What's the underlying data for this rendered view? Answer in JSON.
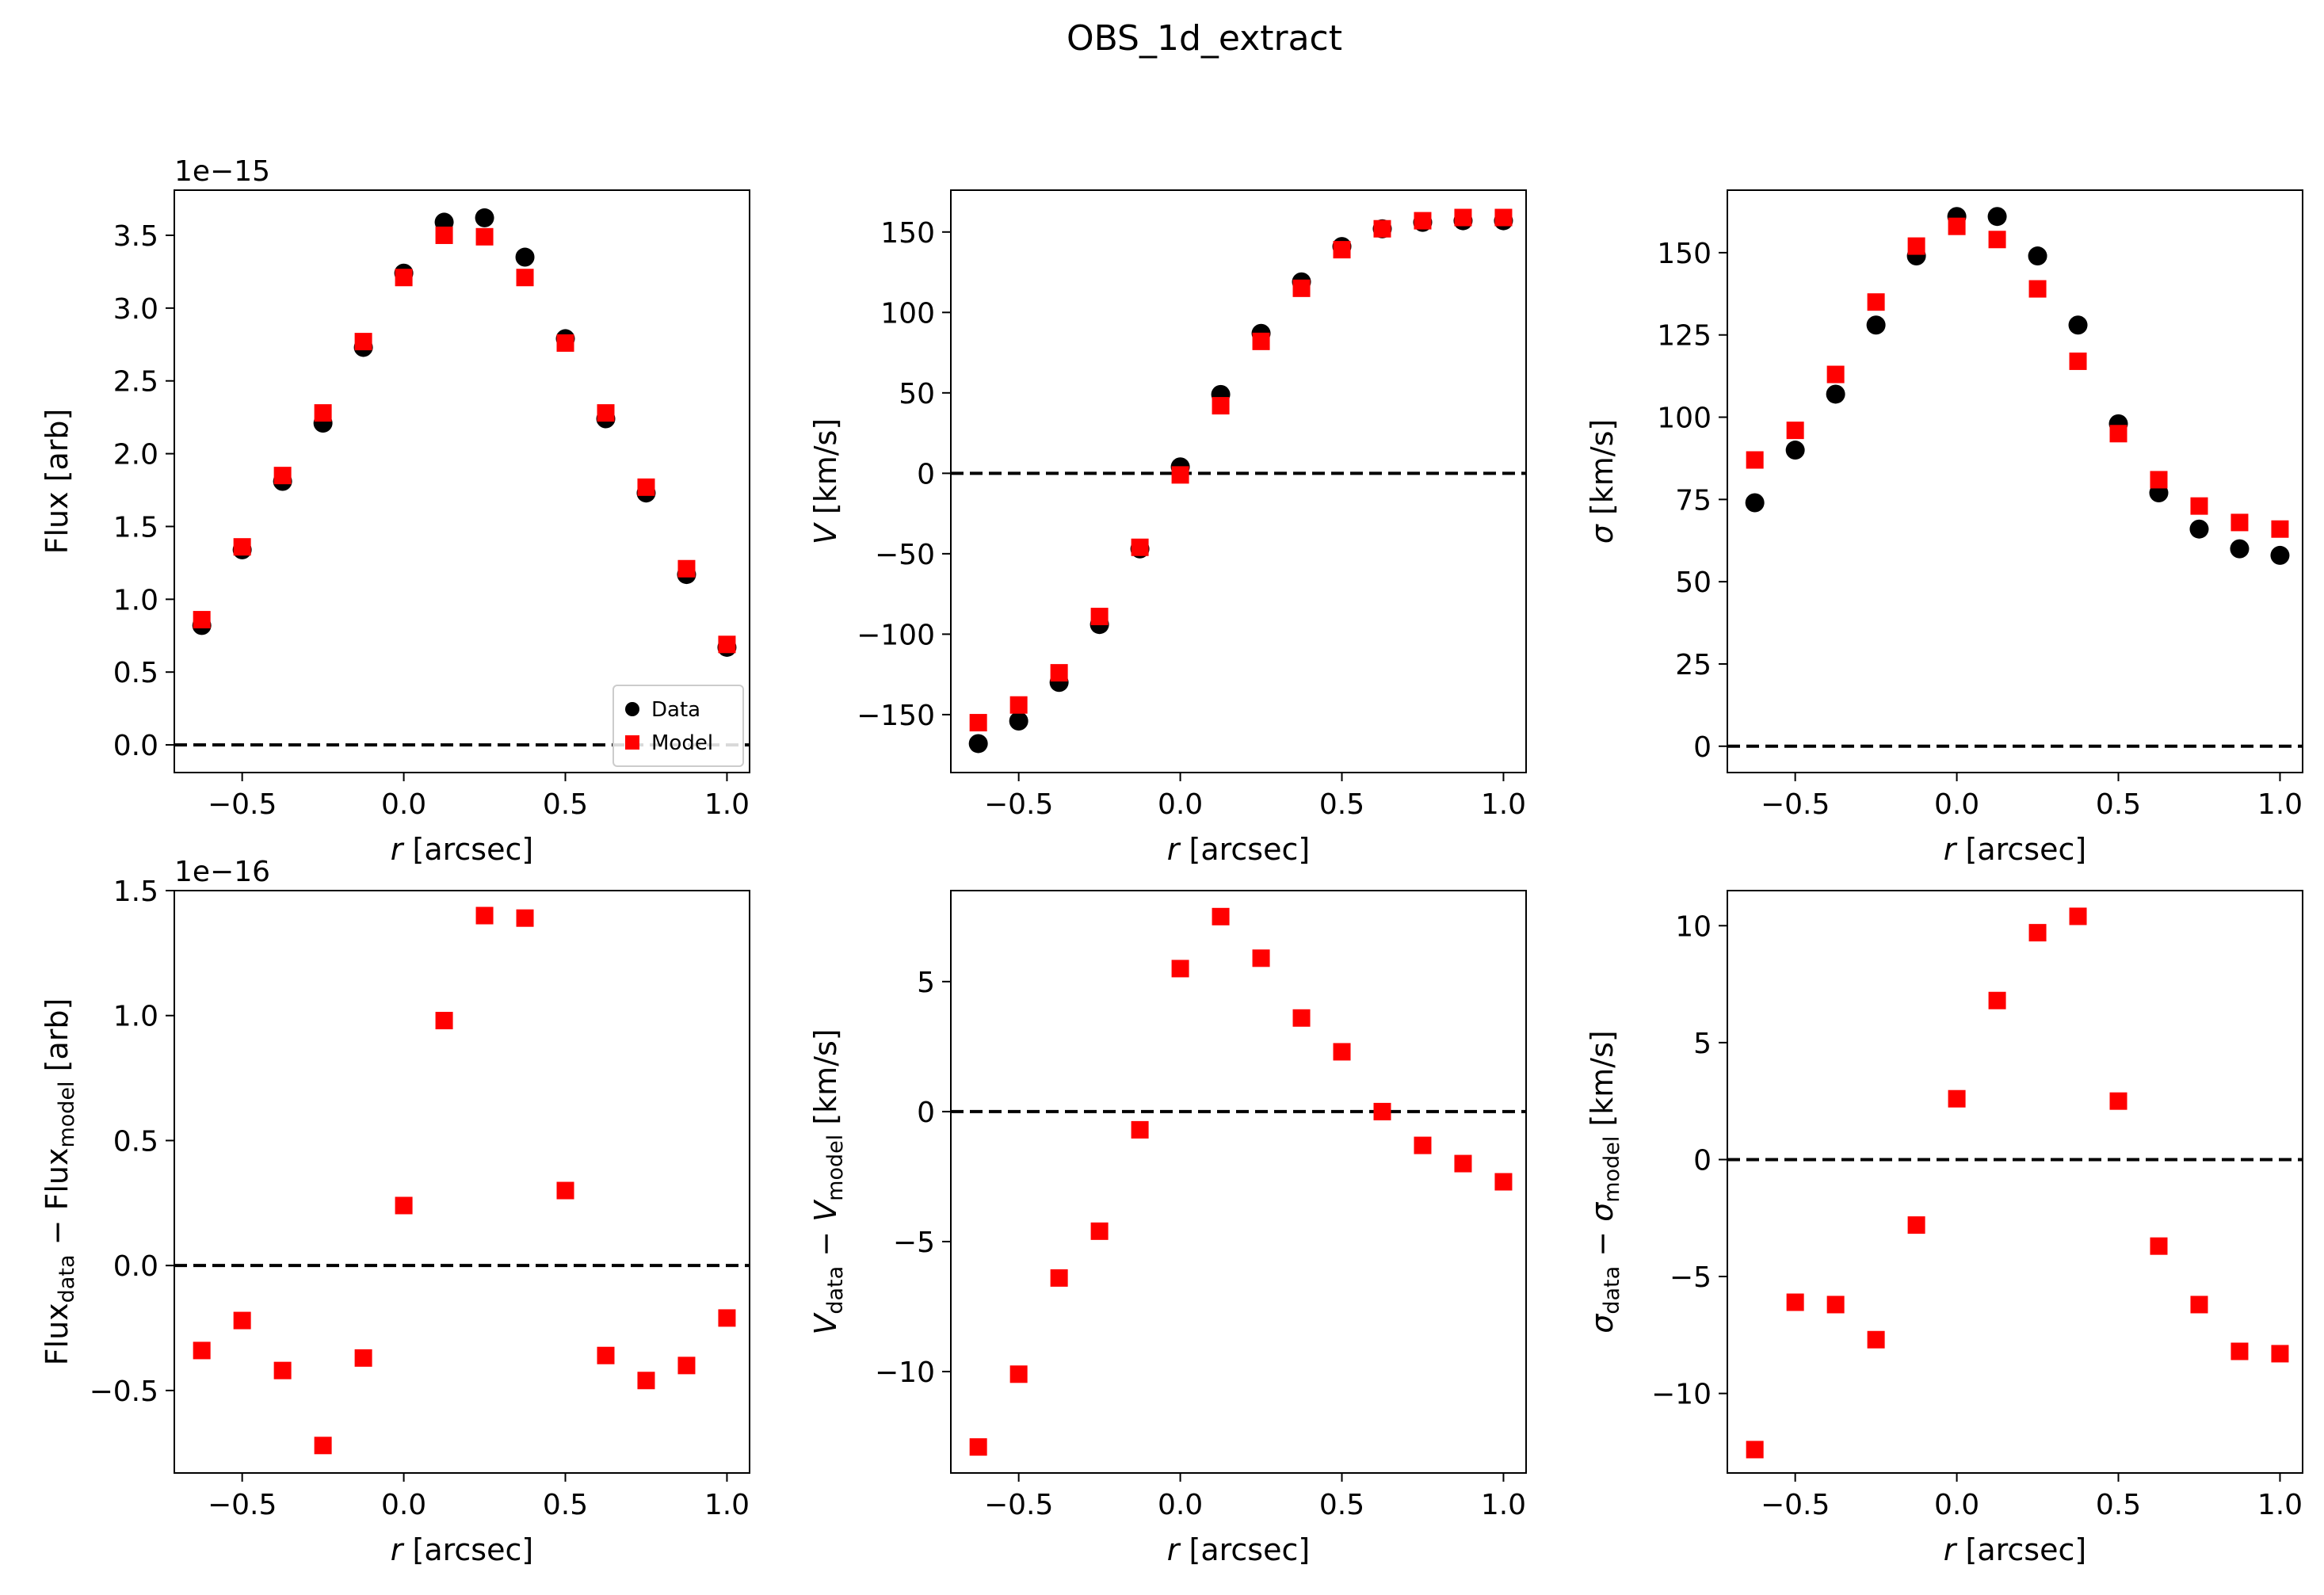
{
  "figure": {
    "title": "OBS_1d_extract"
  },
  "colors": {
    "data": "#000000",
    "model": "#ff0000",
    "zero_line": "#000000"
  },
  "chart_data": [
    {
      "type": "scatter",
      "id": "flux",
      "xlabel_var": "r",
      "xlabel_unit": " [arcsec]",
      "ylabel": "Flux [arb]",
      "offset": "1e−15",
      "xlim": [
        -0.71,
        1.07
      ],
      "ylim": [
        -0.19,
        3.81
      ],
      "xticks": [
        -0.5,
        0.0,
        0.5,
        1.0
      ],
      "xtick_labels": [
        "−0.5",
        "0.0",
        "0.5",
        "1.0"
      ],
      "yticks": [
        0.0,
        0.5,
        1.0,
        1.5,
        2.0,
        2.5,
        3.0,
        3.5
      ],
      "ytick_labels": [
        "0.0",
        "0.5",
        "1.0",
        "1.5",
        "2.0",
        "2.5",
        "3.0",
        "3.5"
      ],
      "zero_line": true,
      "legend": {
        "placement": "lower-right",
        "entries": [
          "Data",
          "Model"
        ]
      },
      "x": [
        -0.625,
        -0.5,
        -0.375,
        -0.25,
        -0.125,
        0.0,
        0.125,
        0.25,
        0.375,
        0.5,
        0.625,
        0.75,
        0.875,
        1.0
      ],
      "series": [
        {
          "name": "Data",
          "marker": "circle",
          "color": "#000000",
          "values": [
            0.82,
            1.34,
            1.81,
            2.21,
            2.73,
            3.24,
            3.59,
            3.62,
            3.35,
            2.79,
            2.24,
            1.73,
            1.17,
            0.67
          ]
        },
        {
          "name": "Model",
          "marker": "square",
          "color": "#ff0000",
          "values": [
            0.86,
            1.36,
            1.85,
            2.28,
            2.77,
            3.21,
            3.5,
            3.49,
            3.21,
            2.76,
            2.28,
            1.77,
            1.21,
            0.69
          ]
        }
      ]
    },
    {
      "type": "scatter",
      "id": "velocity",
      "xlabel_var": "r",
      "xlabel_unit": " [arcsec]",
      "ylabel_var": "V",
      "ylabel_unit": " [km/s]",
      "xlim": [
        -0.71,
        1.07
      ],
      "ylim": [
        -186,
        176
      ],
      "xticks": [
        -0.5,
        0.0,
        0.5,
        1.0
      ],
      "xtick_labels": [
        "−0.5",
        "0.0",
        "0.5",
        "1.0"
      ],
      "yticks": [
        -150,
        -100,
        -50,
        0,
        50,
        100,
        150
      ],
      "ytick_labels": [
        "−150",
        "−100",
        "−50",
        "0",
        "50",
        "100",
        "150"
      ],
      "zero_line": true,
      "x": [
        -0.625,
        -0.5,
        -0.375,
        -0.25,
        -0.125,
        0.0,
        0.125,
        0.25,
        0.375,
        0.5,
        0.625,
        0.75,
        0.875,
        1.0
      ],
      "series": [
        {
          "name": "Data",
          "marker": "circle",
          "color": "#000000",
          "values": [
            -168,
            -154,
            -130,
            -94,
            -47,
            4,
            49,
            87,
            119,
            141,
            152,
            156,
            157,
            157
          ]
        },
        {
          "name": "Model",
          "marker": "square",
          "color": "#ff0000",
          "values": [
            -155,
            -144,
            -124,
            -89,
            -46,
            -1,
            42,
            82,
            115,
            139,
            152,
            157,
            159,
            159
          ]
        }
      ]
    },
    {
      "type": "scatter",
      "id": "dispersion",
      "xlabel_var": "r",
      "xlabel_unit": " [arcsec]",
      "ylabel_var": "σ",
      "ylabel_unit": " [km/s]",
      "xlim": [
        -0.71,
        1.07
      ],
      "ylim": [
        -8,
        169
      ],
      "xticks": [
        -0.5,
        0.0,
        0.5,
        1.0
      ],
      "xtick_labels": [
        "−0.5",
        "0.0",
        "0.5",
        "1.0"
      ],
      "yticks": [
        0,
        25,
        50,
        75,
        100,
        125,
        150
      ],
      "ytick_labels": [
        "0",
        "25",
        "50",
        "75",
        "100",
        "125",
        "150"
      ],
      "zero_line": true,
      "x": [
        -0.625,
        -0.5,
        -0.375,
        -0.25,
        -0.125,
        0.0,
        0.125,
        0.25,
        0.375,
        0.5,
        0.625,
        0.75,
        0.875,
        1.0
      ],
      "series": [
        {
          "name": "Data",
          "marker": "circle",
          "color": "#000000",
          "values": [
            74,
            90,
            107,
            128,
            149,
            161,
            161,
            149,
            128,
            98,
            77,
            66,
            60,
            58
          ]
        },
        {
          "name": "Model",
          "marker": "square",
          "color": "#ff0000",
          "values": [
            87,
            96,
            113,
            135,
            152,
            158,
            154,
            139,
            117,
            95,
            81,
            73,
            68,
            66
          ]
        }
      ]
    },
    {
      "type": "scatter",
      "id": "flux-residual",
      "xlabel_var": "r",
      "xlabel_unit": " [arcsec]",
      "ylabel_parts": [
        "Flux",
        "data",
        " − Flux",
        "model",
        " [arb]"
      ],
      "offset": "1e−16",
      "xlim": [
        -0.71,
        1.07
      ],
      "ylim": [
        -0.83,
        1.5
      ],
      "xticks": [
        -0.5,
        0.0,
        0.5,
        1.0
      ],
      "xtick_labels": [
        "−0.5",
        "0.0",
        "0.5",
        "1.0"
      ],
      "yticks": [
        -0.5,
        0.0,
        0.5,
        1.0,
        1.5
      ],
      "ytick_labels": [
        "−0.5",
        "0.0",
        "0.5",
        "1.0",
        "1.5"
      ],
      "zero_line": true,
      "x": [
        -0.625,
        -0.5,
        -0.375,
        -0.25,
        -0.125,
        0.0,
        0.125,
        0.25,
        0.375,
        0.5,
        0.625,
        0.75,
        0.875,
        1.0
      ],
      "series": [
        {
          "marker": "square",
          "color": "#ff0000",
          "values": [
            -0.34,
            -0.22,
            -0.42,
            -0.72,
            -0.37,
            0.24,
            0.98,
            1.4,
            1.39,
            0.3,
            -0.36,
            -0.46,
            -0.4,
            -0.21
          ]
        }
      ]
    },
    {
      "type": "scatter",
      "id": "velocity-residual",
      "xlabel_var": "r",
      "xlabel_unit": " [arcsec]",
      "ylabel_parts": [
        "V",
        "data",
        " − ",
        "V",
        "model",
        " [km/s]"
      ],
      "xlim": [
        -0.71,
        1.07
      ],
      "ylim": [
        -13.9,
        8.5
      ],
      "xticks": [
        -0.5,
        0.0,
        0.5,
        1.0
      ],
      "xtick_labels": [
        "−0.5",
        "0.0",
        "0.5",
        "1.0"
      ],
      "yticks": [
        -10,
        -5,
        0,
        5
      ],
      "ytick_labels": [
        "−10",
        "−5",
        "0",
        "5"
      ],
      "zero_line": true,
      "x": [
        -0.625,
        -0.5,
        -0.375,
        -0.25,
        -0.125,
        0.0,
        0.125,
        0.25,
        0.375,
        0.5,
        0.625,
        0.75,
        0.875,
        1.0
      ],
      "series": [
        {
          "marker": "square",
          "color": "#ff0000",
          "values": [
            -12.9,
            -10.1,
            -6.4,
            -4.6,
            -0.7,
            5.5,
            7.5,
            5.9,
            3.6,
            2.3,
            0.0,
            -1.3,
            -2.0,
            -2.7
          ]
        }
      ]
    },
    {
      "type": "scatter",
      "id": "dispersion-residual",
      "xlabel_var": "r",
      "xlabel_unit": " [arcsec]",
      "ylabel_parts": [
        "σ",
        "data",
        " − ",
        "σ",
        "model",
        " [km/s]"
      ],
      "xlim": [
        -0.71,
        1.07
      ],
      "ylim": [
        -13.4,
        11.5
      ],
      "xticks": [
        -0.5,
        0.0,
        0.5,
        1.0
      ],
      "xtick_labels": [
        "−0.5",
        "0.0",
        "0.5",
        "1.0"
      ],
      "yticks": [
        -10,
        -5,
        0,
        5,
        10
      ],
      "ytick_labels": [
        "−10",
        "−5",
        "0",
        "5",
        "10"
      ],
      "zero_line": true,
      "x": [
        -0.625,
        -0.5,
        -0.375,
        -0.25,
        -0.125,
        0.0,
        0.125,
        0.25,
        0.375,
        0.5,
        0.625,
        0.75,
        0.875,
        1.0
      ],
      "series": [
        {
          "marker": "square",
          "color": "#ff0000",
          "values": [
            -12.4,
            -6.1,
            -6.2,
            -7.7,
            -2.8,
            2.6,
            6.8,
            9.7,
            10.4,
            2.5,
            -3.7,
            -6.2,
            -8.2,
            -8.3
          ]
        }
      ]
    }
  ]
}
